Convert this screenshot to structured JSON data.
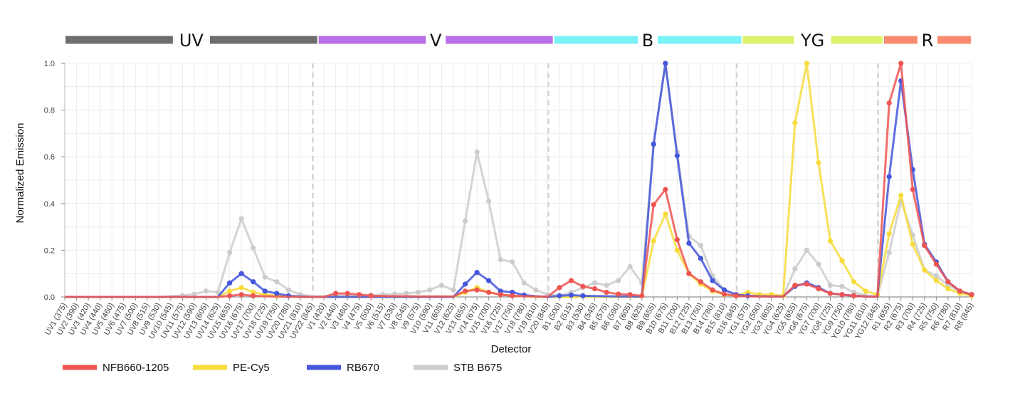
{
  "chart_data": {
    "type": "line",
    "title": "",
    "xlabel": "Detector",
    "ylabel": "Normalized Emission",
    "ylim": [
      0,
      1
    ],
    "yticks": [
      "0.0",
      "0.2",
      "0.4",
      "0.6",
      "0.8",
      "1.0"
    ],
    "grid": true,
    "legend_position": "bottom-left",
    "lasers": [
      {
        "name": "UV",
        "color": "#6e6e6e",
        "from": 0,
        "to": 21
      },
      {
        "name": "V",
        "color": "#b86ee6",
        "from": 22,
        "to": 41
      },
      {
        "name": "B",
        "color": "#7af2f7",
        "from": 42,
        "to": 57
      },
      {
        "name": "YG",
        "color": "#dcf26a",
        "from": 58,
        "to": 69
      },
      {
        "name": "R",
        "color": "#f78b6e",
        "from": 70,
        "to": 77
      }
    ],
    "categories": [
      "UV1 (375)",
      "UV2 (390)",
      "UV3 (420)",
      "UV4 (440)",
      "UV5 (460)",
      "UV6 (475)",
      "UV7 (500)",
      "UV8 (515)",
      "UV9 (530)",
      "UV10 (545)",
      "UV11 (575)",
      "UV12 (590)",
      "UV13 (605)",
      "UV14 (625)",
      "UV15 (655)",
      "UV16 (675)",
      "UV17 (700)",
      "UV18 (725)",
      "UV19 (750)",
      "UV20 (780)",
      "UV21 (810)",
      "UV22 (845)",
      "V1 (420)",
      "V2 (440)",
      "V3 (460)",
      "V4 (475)",
      "V5 (500)",
      "V6 (515)",
      "V7 (530)",
      "V8 (545)",
      "V9 (575)",
      "V10 (590)",
      "V11 (605)",
      "V12 (625)",
      "V13 (655)",
      "V14 (675)",
      "V15 (700)",
      "V16 (725)",
      "V17 (750)",
      "V18 (780)",
      "V19 (810)",
      "V20 (845)",
      "B1 (500)",
      "B2 (515)",
      "B3 (530)",
      "B4 (545)",
      "B5 (575)",
      "B6 (590)",
      "B7 (605)",
      "B8 (625)",
      "B9 (655)",
      "B10 (675)",
      "B11 (700)",
      "B12 (725)",
      "B13 (750)",
      "B14 (780)",
      "B15 (810)",
      "B16 (845)",
      "YG1 (575)",
      "YG2 (590)",
      "YG3 (605)",
      "YG4 (625)",
      "YG5 (655)",
      "YG6 (675)",
      "YG7 (700)",
      "YG8 (725)",
      "YG9 (750)",
      "YG10 (780)",
      "YG11 (810)",
      "YG12 (845)",
      "R1 (655)",
      "R2 (675)",
      "R3 (700)",
      "R4 (725)",
      "R5 (750)",
      "R6 (780)",
      "R7 (810)",
      "R8 (845)"
    ],
    "series": [
      {
        "name": "STB B675",
        "color": "#cccccc",
        "values": [
          0,
          0,
          0,
          0,
          0,
          0,
          0,
          0,
          0,
          0.003,
          0.006,
          0.012,
          0.025,
          0.02,
          0.19,
          0.335,
          0.21,
          0.085,
          0.065,
          0.03,
          0.01,
          0.003,
          0.003,
          0.005,
          0.005,
          0.006,
          0.008,
          0.01,
          0.012,
          0.015,
          0.02,
          0.03,
          0.05,
          0.03,
          0.325,
          0.62,
          0.41,
          0.16,
          0.15,
          0.06,
          0.03,
          0.01,
          0.005,
          0.02,
          0.04,
          0.06,
          0.05,
          0.07,
          0.13,
          0.06,
          0.65,
          1.0,
          0.62,
          0.26,
          0.22,
          0.09,
          0.03,
          0.01,
          0.005,
          0.005,
          0.003,
          0.003,
          0.12,
          0.2,
          0.14,
          0.05,
          0.045,
          0.02,
          0.005,
          0.003,
          0.19,
          0.41,
          0.265,
          0.115,
          0.09,
          0.05,
          0.025,
          0.01
        ]
      },
      {
        "name": "PE-Cy5",
        "color": "#f7dc3c",
        "values": [
          0,
          0,
          0,
          0,
          0,
          0,
          0,
          0,
          0,
          0,
          0,
          0,
          0,
          0,
          0.025,
          0.04,
          0.02,
          0.01,
          0.005,
          0.003,
          0,
          0,
          0,
          0,
          0,
          0,
          0,
          0,
          0,
          0,
          0,
          0,
          0,
          0,
          0.02,
          0.04,
          0.02,
          0.01,
          0.005,
          0.003,
          0,
          0,
          0,
          0,
          0,
          0,
          0,
          0,
          0,
          0,
          0.24,
          0.355,
          0.2,
          0.1,
          0.055,
          0.025,
          0.01,
          0.005,
          0.02,
          0.01,
          0.01,
          0.005,
          0.745,
          1.0,
          0.575,
          0.24,
          0.155,
          0.065,
          0.025,
          0.01,
          0.27,
          0.435,
          0.225,
          0.115,
          0.07,
          0.035,
          0.015,
          0.005
        ]
      },
      {
        "name": "RB670",
        "color": "#4456dc",
        "values": [
          0,
          0,
          0,
          0,
          0,
          0,
          0,
          0,
          0,
          0,
          0,
          0,
          0,
          0,
          0.06,
          0.1,
          0.065,
          0.025,
          0.015,
          0.005,
          0.002,
          0,
          0,
          0,
          0,
          0,
          0,
          0,
          0,
          0,
          0,
          0,
          0,
          0,
          0.055,
          0.105,
          0.07,
          0.025,
          0.02,
          0.008,
          0.003,
          0,
          0.005,
          0.008,
          0.005,
          0.004,
          0.003,
          0.002,
          0.002,
          0.002,
          0.655,
          1.0,
          0.605,
          0.23,
          0.165,
          0.07,
          0.03,
          0.01,
          0.005,
          0.003,
          0.002,
          0.002,
          0.045,
          0.06,
          0.04,
          0.015,
          0.01,
          0.005,
          0.002,
          0.001,
          0.515,
          0.925,
          0.545,
          0.225,
          0.15,
          0.065,
          0.025,
          0.01
        ]
      },
      {
        "name": "NFB660-1205",
        "color": "#ee5552",
        "values": [
          0,
          0,
          0,
          0,
          0,
          0,
          0,
          0,
          0,
          0,
          0,
          0,
          0,
          0,
          0.005,
          0.01,
          0.005,
          0.003,
          0.002,
          0.001,
          0,
          0,
          0,
          0.015,
          0.015,
          0.01,
          0.005,
          0.004,
          0.003,
          0.003,
          0.002,
          0.002,
          0.002,
          0.002,
          0.025,
          0.03,
          0.02,
          0.01,
          0.005,
          0.003,
          0.002,
          0.001,
          0.04,
          0.07,
          0.045,
          0.035,
          0.02,
          0.012,
          0.01,
          0.005,
          0.395,
          0.46,
          0.245,
          0.1,
          0.065,
          0.03,
          0.012,
          0.005,
          0.003,
          0.002,
          0.002,
          0.002,
          0.05,
          0.055,
          0.035,
          0.015,
          0.01,
          0.005,
          0.002,
          0.001,
          0.83,
          1.0,
          0.46,
          0.22,
          0.14,
          0.065,
          0.025,
          0.01
        ]
      }
    ],
    "legend": [
      "NFB660-1205",
      "PE-Cy5",
      "RB670",
      "STB B675"
    ]
  }
}
